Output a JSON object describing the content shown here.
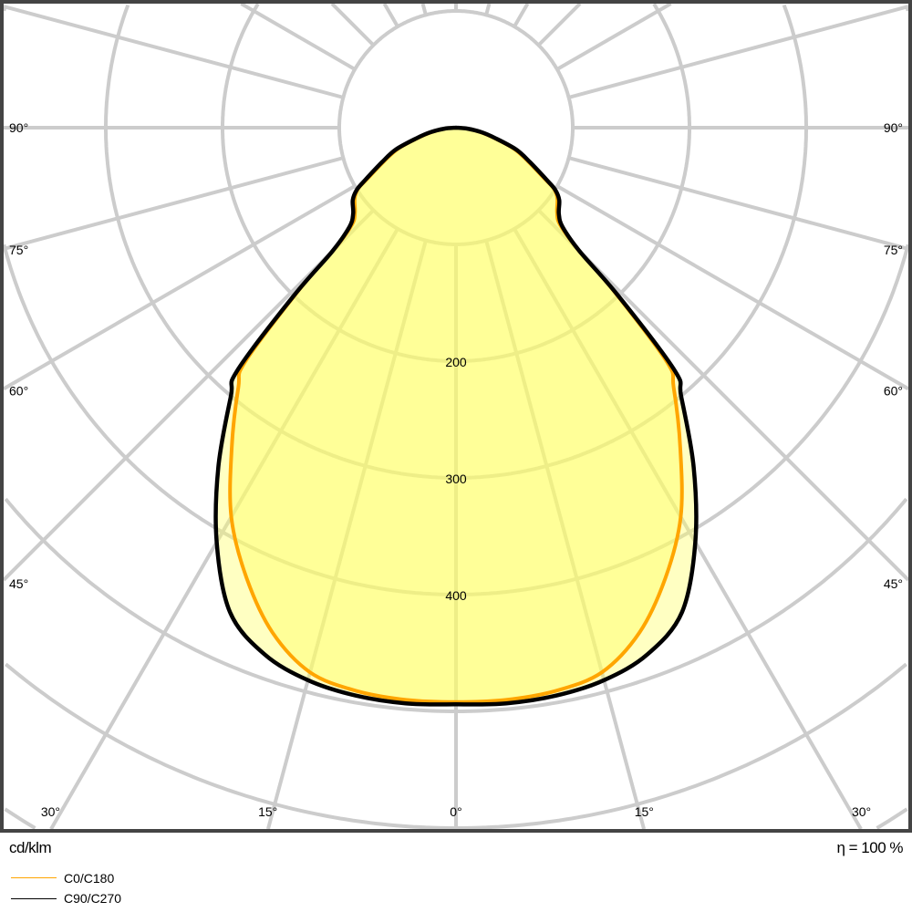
{
  "chart_data": {
    "type": "polar",
    "unit_label": "cd/klm",
    "efficiency_label": "η = 100 %",
    "radial_tick_values": [
      100,
      200,
      300,
      400,
      500,
      600,
      700
    ],
    "radial_tick_labels": [
      "200",
      "300",
      "400"
    ],
    "radial_labeled_values": [
      200,
      300,
      400
    ],
    "angle_grid_step_deg": 15,
    "angle_labels": [
      {
        "angle": 90,
        "side": "left",
        "text": "90°"
      },
      {
        "angle": 75,
        "side": "left",
        "text": "75°"
      },
      {
        "angle": 60,
        "side": "left",
        "text": "60°"
      },
      {
        "angle": 45,
        "side": "left",
        "text": "45°"
      },
      {
        "angle": 30,
        "side": "left",
        "text": "30°"
      },
      {
        "angle": 15,
        "side": "left",
        "text": "15°"
      },
      {
        "angle": 0,
        "side": "center",
        "text": "0°"
      },
      {
        "angle": 15,
        "side": "right",
        "text": "15°"
      },
      {
        "angle": 30,
        "side": "right",
        "text": "30°"
      },
      {
        "angle": 45,
        "side": "right",
        "text": "45°"
      },
      {
        "angle": 60,
        "side": "right",
        "text": "60°"
      },
      {
        "angle": 75,
        "side": "right",
        "text": "75°"
      },
      {
        "angle": 90,
        "side": "right",
        "text": "90°"
      }
    ],
    "series": [
      {
        "name": "C0/C180",
        "color": "#FFA500",
        "angles": [
          0,
          5,
          10,
          15,
          20,
          25,
          30,
          35,
          40,
          42,
          44,
          45,
          47,
          50,
          55,
          58,
          60,
          65,
          70,
          75,
          80,
          85,
          90
        ],
        "values": [
          492,
          492,
          490,
          483,
          460,
          425,
          385,
          335,
          290,
          270,
          195,
          148,
          122,
          113,
          106,
          99,
          88,
          68,
          53,
          34,
          21,
          10,
          0
        ]
      },
      {
        "name": "C90/C270",
        "color": "#000000",
        "angles": [
          0,
          5,
          10,
          15,
          20,
          25,
          30,
          35,
          40,
          42,
          44,
          45,
          47,
          50,
          55,
          58,
          60,
          65,
          70,
          75,
          80,
          85,
          90
        ],
        "values": [
          494,
          495,
          494,
          490,
          480,
          458,
          410,
          355,
          300,
          280,
          200,
          150,
          125,
          115,
          108,
          100,
          90,
          70,
          55,
          35,
          22,
          10,
          0
        ]
      }
    ],
    "grid": true,
    "legend_placement": "bottom-left",
    "fill_color": "#FFFF66",
    "grid_color": "#CCCCCC",
    "frame_color": "#444444"
  }
}
